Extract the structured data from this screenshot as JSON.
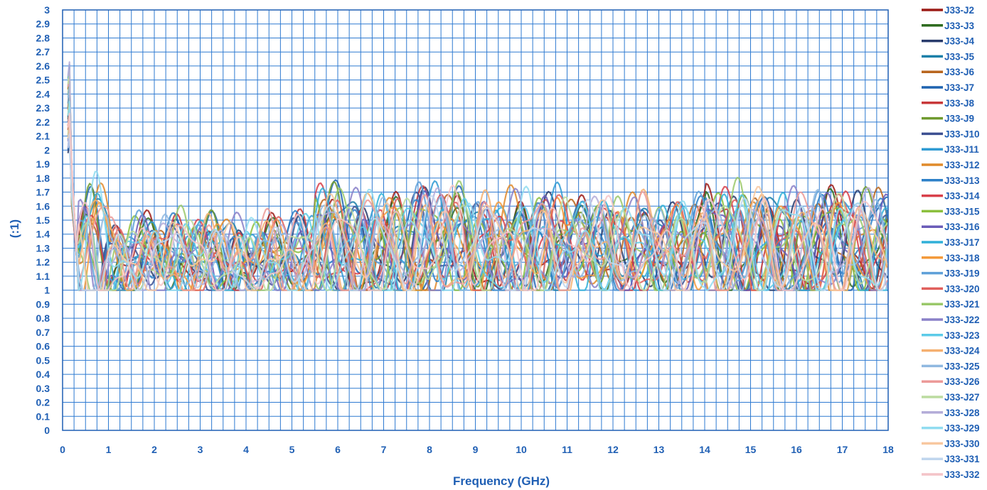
{
  "chart_data": {
    "type": "line",
    "title": "",
    "xlabel": "Frequency (GHz)",
    "ylabel": "(:1)",
    "xlim": [
      0,
      18
    ],
    "ylim": [
      0,
      3
    ],
    "x_ticks": [
      "0",
      "1",
      "2",
      "3",
      "4",
      "5",
      "6",
      "7",
      "8",
      "9",
      "10",
      "11",
      "12",
      "13",
      "14",
      "15",
      "16",
      "17",
      "18"
    ],
    "y_ticks": [
      "0",
      "0.1",
      "0.2",
      "0.3",
      "0.4",
      "0.5",
      "0.6",
      "0.7",
      "0.8",
      "0.9",
      "1",
      "1.1",
      "1.2",
      "1.3",
      "1.4",
      "1.5",
      "1.6",
      "1.7",
      "1.8",
      "1.9",
      "2",
      "2.1",
      "2.2",
      "2.3",
      "2.4",
      "2.5",
      "2.6",
      "2.7",
      "2.8",
      "2.9",
      "3"
    ],
    "grid": true,
    "legend_position": "right",
    "axis_color": "#1f5fb4",
    "grid_color": "#2e7ad1",
    "series": [
      {
        "name": "J33-J2",
        "color": "#9c1b16"
      },
      {
        "name": "J33-J3",
        "color": "#2e6b1f"
      },
      {
        "name": "J33-J4",
        "color": "#273a6b"
      },
      {
        "name": "J33-J5",
        "color": "#1b7fa8"
      },
      {
        "name": "J33-J6",
        "color": "#b8661e"
      },
      {
        "name": "J33-J7",
        "color": "#1e63b0"
      },
      {
        "name": "J33-J8",
        "color": "#c8383a"
      },
      {
        "name": "J33-J9",
        "color": "#6f9a2e"
      },
      {
        "name": "J33-J10",
        "color": "#3c4f91"
      },
      {
        "name": "J33-J11",
        "color": "#2f9bd3"
      },
      {
        "name": "J33-J12",
        "color": "#e08a2a"
      },
      {
        "name": "J33-J13",
        "color": "#2c80c8"
      },
      {
        "name": "J33-J14",
        "color": "#d8404a"
      },
      {
        "name": "J33-J15",
        "color": "#8bbf3d"
      },
      {
        "name": "J33-J16",
        "color": "#6a5bb8"
      },
      {
        "name": "J33-J17",
        "color": "#30b0d8"
      },
      {
        "name": "J33-J18",
        "color": "#f39a3b"
      },
      {
        "name": "J33-J19",
        "color": "#5ea0d8"
      },
      {
        "name": "J33-J20",
        "color": "#e0605c"
      },
      {
        "name": "J33-J21",
        "color": "#9ac86a"
      },
      {
        "name": "J33-J22",
        "color": "#8a80c8"
      },
      {
        "name": "J33-J23",
        "color": "#5ccbe8"
      },
      {
        "name": "J33-J24",
        "color": "#f5b070"
      },
      {
        "name": "J33-J25",
        "color": "#8fb8e0"
      },
      {
        "name": "J33-J26",
        "color": "#ec9a98"
      },
      {
        "name": "J33-J27",
        "color": "#bcdca0"
      },
      {
        "name": "J33-J28",
        "color": "#b4acd8"
      },
      {
        "name": "J33-J29",
        "color": "#90dcf0"
      },
      {
        "name": "J33-J30",
        "color": "#f8c8a0"
      },
      {
        "name": "J33-J31",
        "color": "#c0d6ee"
      },
      {
        "name": "J33-J32",
        "color": "#f4c4c8"
      }
    ]
  }
}
